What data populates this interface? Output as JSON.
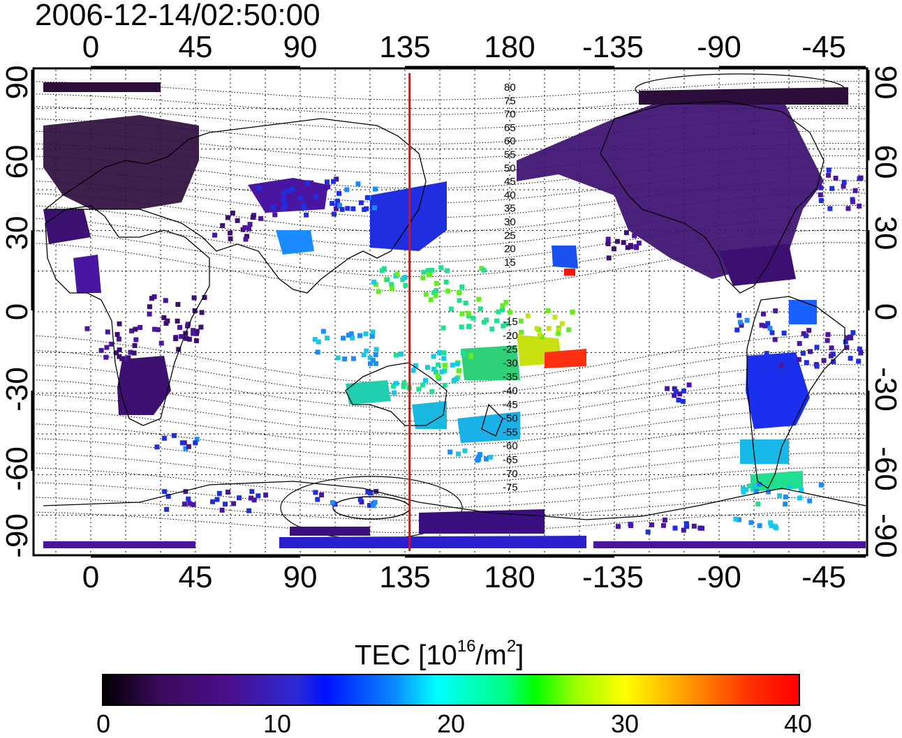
{
  "timestamp": "2006-12-14/02:50:00",
  "map": {
    "lon_ticks": [
      "0",
      "45",
      "90",
      "135",
      "180",
      "-135",
      "-90",
      "-45"
    ],
    "lat_ticks": [
      "90",
      "60",
      "30",
      "0",
      "-30",
      "-60",
      "-90"
    ],
    "magnetic_latitude_labels_north": [
      "80",
      "75",
      "70",
      "65",
      "60",
      "55",
      "50",
      "45",
      "40",
      "35",
      "30",
      "25",
      "20",
      "15"
    ],
    "magnetic_latitude_labels_south": [
      "-15",
      "-20",
      "-25",
      "-30",
      "-35",
      "-40",
      "-45",
      "-50",
      "-55",
      "-60",
      "-65",
      "-70",
      "-75"
    ],
    "terminator_longitude": 137,
    "colors": {
      "terminator": "#ff0000",
      "grid": "#000000"
    }
  },
  "colorbar": {
    "title_prefix": "TEC  [10",
    "title_exp1": "16",
    "title_mid": "/m",
    "title_exp2": "2",
    "title_suffix": "]",
    "range": [
      0,
      40
    ],
    "ticks": [
      "0",
      "10",
      "20",
      "30",
      "40"
    ]
  }
}
